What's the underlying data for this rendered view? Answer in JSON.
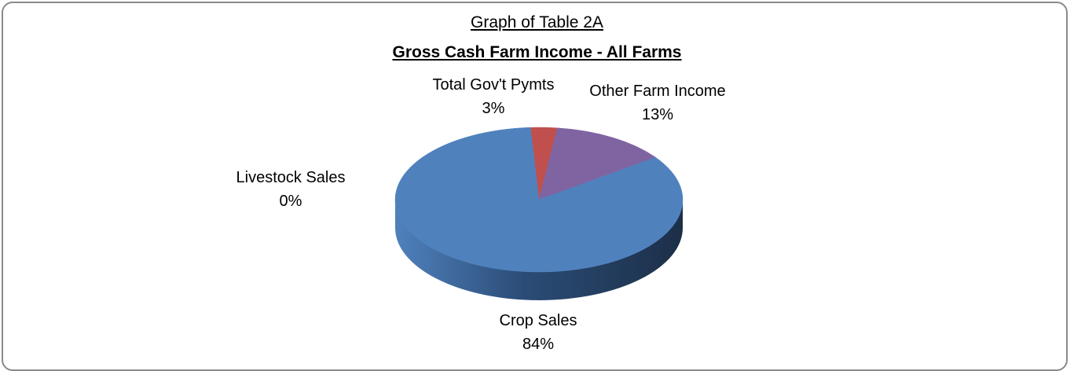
{
  "chart_data": {
    "type": "pie",
    "title": "Graph of Table 2A",
    "subtitle": "Gross Cash Farm Income - All Farms",
    "three_d": true,
    "categories": [
      "Crop Sales",
      "Livestock Sales",
      "Total Gov't Pymts",
      "Other Farm Income"
    ],
    "values": [
      84,
      0,
      3,
      13
    ],
    "labels": [
      {
        "name": "Crop Sales",
        "pct": "84%"
      },
      {
        "name": "Livestock Sales",
        "pct": "0%"
      },
      {
        "name": "Total Gov't Pymts",
        "pct": "3%"
      },
      {
        "name": "Other Farm Income",
        "pct": "13%"
      }
    ],
    "colors": [
      "#4f81bd",
      "#9bbb59",
      "#c0504d",
      "#8064a2"
    ],
    "legend": "none"
  }
}
